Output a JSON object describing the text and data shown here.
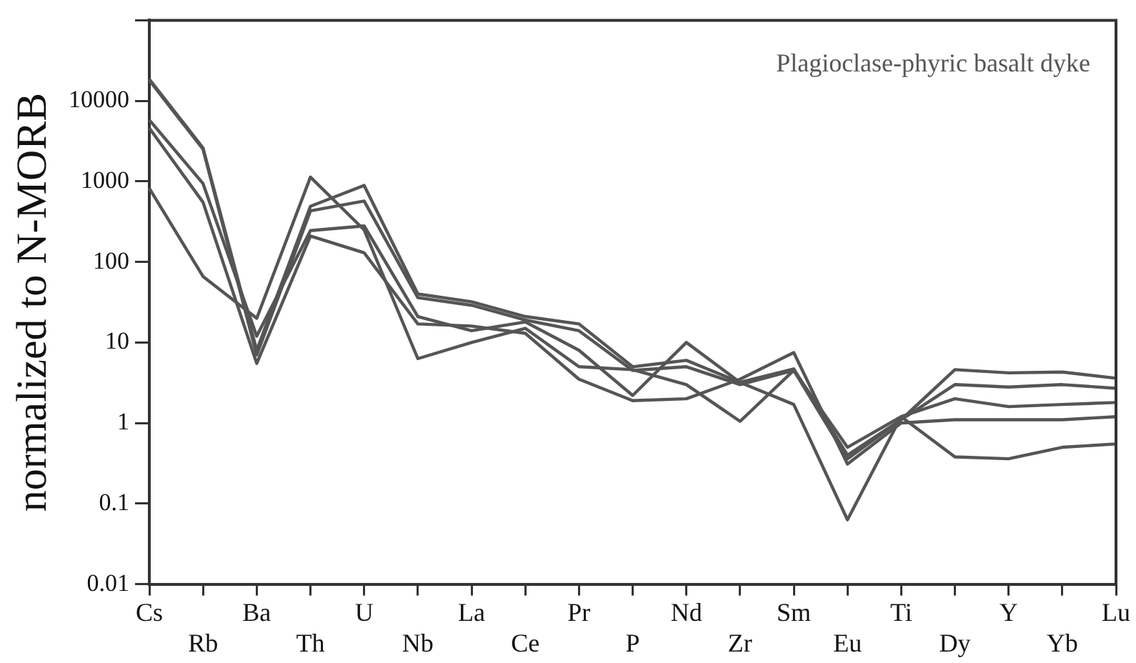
{
  "chart_data": {
    "type": "line",
    "ylabel": "normalized to N-MORB",
    "annotations": [
      "Plagioclase-phyric basalt dyke"
    ],
    "categories": [
      "Cs",
      "Rb",
      "Ba",
      "Th",
      "U",
      "Nb",
      "La",
      "Ce",
      "Pr",
      "P",
      "Nd",
      "Zr",
      "Sm",
      "Eu",
      "Ti",
      "Dy",
      "Y",
      "Yb",
      "Lu"
    ],
    "series": [
      {
        "color": "#555555",
        "values": [
          18600,
          2600,
          8,
          490,
          890,
          40,
          32,
          21,
          17,
          5,
          6,
          3.2,
          4.7,
          0.4,
          1.1,
          4.6,
          4.2,
          4.3,
          3.6
        ]
      },
      {
        "color": "#555555",
        "values": [
          18000,
          2500,
          7,
          430,
          570,
          36,
          29,
          19,
          14,
          4.5,
          5,
          3,
          4.5,
          0.36,
          1.1,
          3.0,
          2.8,
          3.0,
          2.7
        ]
      },
      {
        "color": "#555555",
        "values": [
          5800,
          940,
          12,
          245,
          280,
          21,
          14,
          18,
          8,
          2.2,
          10,
          3.2,
          1.7,
          0.063,
          1.2,
          2.0,
          1.6,
          1.7,
          1.8
        ]
      },
      {
        "color": "#555555",
        "values": [
          4600,
          550,
          5.5,
          210,
          130,
          17,
          16,
          13,
          3.5,
          1.9,
          2.0,
          3.5,
          7.5,
          0.31,
          1.0,
          1.1,
          1.1,
          1.1,
          1.2
        ]
      },
      {
        "color": "#555555",
        "values": [
          820,
          66,
          20,
          1130,
          250,
          6.3,
          10,
          15,
          5,
          4.6,
          3,
          1.05,
          4.5,
          0.5,
          1.2,
          0.38,
          0.36,
          0.5,
          0.55
        ]
      }
    ],
    "log": "y",
    "ylim": [
      0.01,
      100000
    ],
    "yticks": [
      0.01,
      0.1,
      1,
      10,
      100,
      1000,
      10000,
      {
        "value": 100000,
        "label": null
      }
    ],
    "grid": false,
    "legend": false,
    "marker": "none",
    "line_style": "solid"
  }
}
